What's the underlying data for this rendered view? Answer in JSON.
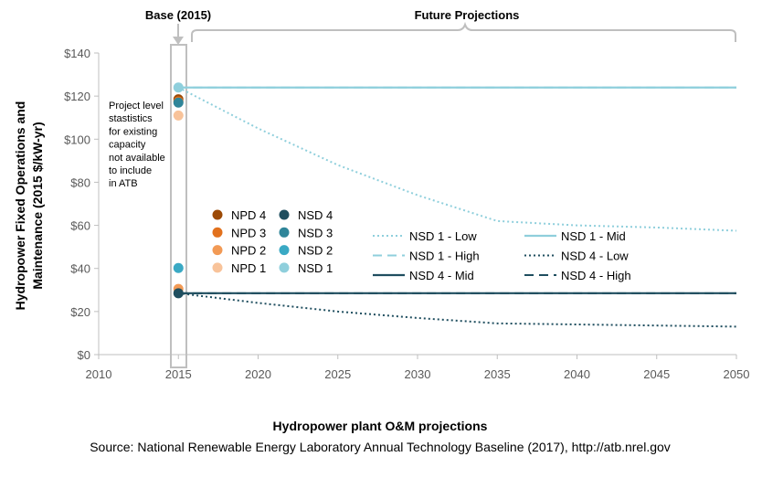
{
  "chart_data": {
    "type": "line",
    "ylabel_lines": [
      "Hydropower Fixed Operations and",
      "Maintenance (2015 $/kW-yr)"
    ],
    "xlabel": "Hydropower plant O&M projections",
    "source": "Source: National Renewable Energy Laboratory Annual Technology Baseline (2017), http://atb.nrel.gov",
    "xlim": [
      2010,
      2050
    ],
    "ylim": [
      0,
      140
    ],
    "x_ticks": [
      2010,
      2015,
      2020,
      2025,
      2030,
      2035,
      2040,
      2045,
      2050
    ],
    "y_ticks": [
      0,
      20,
      40,
      60,
      80,
      100,
      120,
      140
    ],
    "y_tick_labels": [
      "$0",
      "$20",
      "$40",
      "$60",
      "$80",
      "$100",
      "$120",
      "$140"
    ],
    "grid": false,
    "annotations": {
      "base_label": "Base (2015)",
      "future_label": "Future Projections",
      "note_lines": [
        "Project level",
        "stastistics",
        "for existing",
        "capacity",
        "not available",
        "to include",
        "in ATB"
      ]
    },
    "points": [
      {
        "name": "NPD 4",
        "x": 2015,
        "y": 118.5,
        "color": "#9c4a06"
      },
      {
        "name": "NPD 3",
        "x": 2015,
        "y": 117.5,
        "color": "#e2711d"
      },
      {
        "name": "NPD 2",
        "x": 2015,
        "y": 30.5,
        "color": "#f29a55"
      },
      {
        "name": "NPD 1",
        "x": 2015,
        "y": 111,
        "color": "#f8c39a"
      },
      {
        "name": "NSD 4",
        "x": 2015,
        "y": 28.5,
        "color": "#1f4e5f"
      },
      {
        "name": "NSD 3",
        "x": 2015,
        "y": 117,
        "color": "#2f8599"
      },
      {
        "name": "NSD 2",
        "x": 2015,
        "y": 40.2,
        "color": "#3aa9c4"
      },
      {
        "name": "NSD 1",
        "x": 2015,
        "y": 124,
        "color": "#8fcfdc"
      }
    ],
    "series": [
      {
        "name": "NSD 1 - Low",
        "style": "dotted",
        "color": "#8fcfdc",
        "x": [
          2015,
          2020,
          2025,
          2030,
          2035,
          2040,
          2045,
          2050
        ],
        "y": [
          124,
          105,
          88,
          74,
          62,
          60,
          59,
          57.5
        ]
      },
      {
        "name": "NSD 1 - Mid",
        "style": "solid",
        "color": "#8fcfdc",
        "x": [
          2015,
          2050
        ],
        "y": [
          124,
          124
        ]
      },
      {
        "name": "NSD 1 - High",
        "style": "dashed",
        "color": "#8fcfdc",
        "x": [
          2015,
          2050
        ],
        "y": [
          124,
          124
        ]
      },
      {
        "name": "NSD 4 - Low",
        "style": "dotted",
        "color": "#1f4e5f",
        "x": [
          2015,
          2020,
          2025,
          2030,
          2035,
          2040,
          2045,
          2050
        ],
        "y": [
          28.5,
          24,
          20,
          17,
          14.5,
          14,
          13.5,
          13
        ]
      },
      {
        "name": "NSD 4 - Mid",
        "style": "solid",
        "color": "#1f4e5f",
        "x": [
          2015,
          2050
        ],
        "y": [
          28.5,
          28.5
        ]
      },
      {
        "name": "NSD 4 - High",
        "style": "dashed",
        "color": "#1f4e5f",
        "x": [
          2015,
          2050
        ],
        "y": [
          28.5,
          28.5
        ]
      }
    ],
    "legend_points_order": [
      [
        "NPD 4",
        "NSD 4"
      ],
      [
        "NPD 3",
        "NSD 3"
      ],
      [
        "NPD 2",
        "NSD 2"
      ],
      [
        "NPD 1",
        "NSD 1"
      ]
    ],
    "legend_lines_order": [
      [
        "NSD 1 - Low",
        "NSD 1 - Mid"
      ],
      [
        "NSD 1 - High",
        "NSD 4 - Low"
      ],
      [
        "NSD 4 - Mid",
        "NSD 4 - High"
      ]
    ]
  }
}
